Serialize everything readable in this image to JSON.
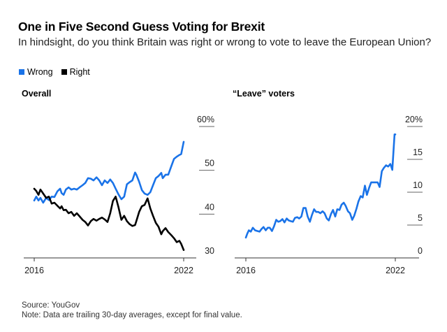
{
  "header": {
    "title": "One in Five Second Guess Voting for Brexit",
    "subtitle": "In hindsight, do you think Britain was right or wrong to vote to leave the European Union?"
  },
  "legend": [
    {
      "label": "Wrong",
      "color": "#1a73e8"
    },
    {
      "label": "Right",
      "color": "#000000"
    }
  ],
  "footer": {
    "source": "Source: YouGov",
    "note": "Note: Data are trailing 30-day averages, except for final value."
  },
  "chart_data": [
    {
      "type": "line",
      "title": "Overall",
      "xlabel": "",
      "ylabel": "",
      "x_range": [
        2016.0,
        2022.0
      ],
      "x_ticks": [
        "2016",
        "2022"
      ],
      "ylim": [
        30,
        60
      ],
      "y_ticks": [
        "60%",
        "50",
        "40",
        "30"
      ],
      "y_tick_values": [
        60,
        50,
        40,
        30
      ],
      "grid": false,
      "series": [
        {
          "name": "Wrong",
          "color": "#1a73e8",
          "x": [
            2016.0,
            2016.08,
            2016.17,
            2016.25,
            2016.36,
            2016.48,
            2016.59,
            2016.7,
            2016.81,
            2016.93,
            2017.04,
            2017.1,
            2017.18,
            2017.27,
            2017.38,
            2017.49,
            2017.6,
            2017.71,
            2017.82,
            2017.94,
            2018.05,
            2018.16,
            2018.27,
            2018.38,
            2018.5,
            2018.61,
            2018.72,
            2018.83,
            2018.94,
            2019.05,
            2019.16,
            2019.27,
            2019.38,
            2019.5,
            2019.61,
            2019.72,
            2019.83,
            2019.94,
            2020.05,
            2020.1,
            2020.21,
            2020.32,
            2020.43,
            2020.55,
            2020.66,
            2020.77,
            2020.88,
            2020.99,
            2021.1,
            2021.16,
            2021.27,
            2021.38,
            2021.5,
            2021.61,
            2021.72,
            2021.83,
            2021.9,
            2022.0
          ],
          "values": [
            43.1,
            44.0,
            43.1,
            43.7,
            42.6,
            43.7,
            43.2,
            44.0,
            43.9,
            45.2,
            45.8,
            44.8,
            44.4,
            45.6,
            46.1,
            45.6,
            45.8,
            45.6,
            46.1,
            46.6,
            47.1,
            48.2,
            48.1,
            47.7,
            48.4,
            47.7,
            46.6,
            47.7,
            47.1,
            47.9,
            47.1,
            45.8,
            44.5,
            43.4,
            44.0,
            46.8,
            47.3,
            47.7,
            49.5,
            49.0,
            47.4,
            45.5,
            44.7,
            44.4,
            45.0,
            46.6,
            48.2,
            48.7,
            49.4,
            48.2,
            49.0,
            49.0,
            50.9,
            52.6,
            53.1,
            53.5,
            53.7,
            56.5
          ]
        },
        {
          "name": "Right",
          "color": "#000000",
          "x": [
            2016.0,
            2016.08,
            2016.17,
            2016.25,
            2016.36,
            2016.48,
            2016.59,
            2016.7,
            2016.81,
            2016.93,
            2017.04,
            2017.1,
            2017.18,
            2017.27,
            2017.38,
            2017.49,
            2017.6,
            2017.71,
            2017.82,
            2017.94,
            2018.05,
            2018.16,
            2018.27,
            2018.38,
            2018.5,
            2018.61,
            2018.72,
            2018.83,
            2018.94,
            2019.05,
            2019.16,
            2019.27,
            2019.38,
            2019.5,
            2019.61,
            2019.72,
            2019.83,
            2019.94,
            2020.05,
            2020.1,
            2020.21,
            2020.32,
            2020.43,
            2020.55,
            2020.66,
            2020.77,
            2020.88,
            2020.99,
            2021.1,
            2021.16,
            2021.27,
            2021.38,
            2021.5,
            2021.61,
            2021.72,
            2021.83,
            2021.9,
            2022.0
          ],
          "values": [
            45.8,
            45.3,
            44.4,
            45.6,
            44.7,
            43.7,
            44.0,
            42.4,
            42.6,
            41.9,
            41.3,
            41.8,
            40.9,
            41.0,
            40.2,
            40.5,
            39.6,
            40.2,
            39.5,
            38.7,
            38.2,
            37.4,
            38.4,
            38.9,
            38.5,
            38.9,
            39.2,
            38.8,
            38.2,
            40.2,
            43.0,
            44.0,
            41.6,
            38.7,
            39.6,
            38.4,
            37.7,
            37.3,
            37.5,
            38.4,
            40.5,
            41.8,
            42.1,
            43.6,
            41.3,
            39.6,
            38.0,
            37.1,
            35.4,
            36.1,
            36.8,
            35.9,
            35.2,
            34.5,
            33.6,
            33.9,
            33.2,
            31.8
          ]
        }
      ]
    },
    {
      "type": "line",
      "title": "“Leave” voters",
      "xlabel": "",
      "ylabel": "",
      "x_range": [
        2016.0,
        2022.0
      ],
      "x_ticks": [
        "2016",
        "2022"
      ],
      "ylim": [
        0,
        20
      ],
      "y_ticks": [
        "20%",
        "15",
        "10",
        "5",
        "0"
      ],
      "y_tick_values": [
        20,
        15,
        10,
        5,
        0
      ],
      "grid": false,
      "series": [
        {
          "name": "Wrong",
          "color": "#1a73e8",
          "x": [
            2016.0,
            2016.06,
            2016.12,
            2016.2,
            2016.28,
            2016.37,
            2016.46,
            2016.55,
            2016.63,
            2016.71,
            2016.8,
            2016.88,
            2016.96,
            2017.05,
            2017.13,
            2017.22,
            2017.3,
            2017.38,
            2017.47,
            2017.55,
            2017.64,
            2017.72,
            2017.8,
            2017.89,
            2017.97,
            2018.06,
            2018.14,
            2018.23,
            2018.31,
            2018.4,
            2018.48,
            2018.57,
            2018.65,
            2018.74,
            2018.82,
            2018.91,
            2018.99,
            2019.08,
            2019.16,
            2019.25,
            2019.33,
            2019.42,
            2019.5,
            2019.59,
            2019.67,
            2019.76,
            2019.84,
            2019.93,
            2020.01,
            2020.1,
            2020.18,
            2020.27,
            2020.35,
            2020.44,
            2020.52,
            2020.61,
            2020.69,
            2020.78,
            2020.86,
            2020.95,
            2021.03,
            2021.12,
            2021.2,
            2021.29,
            2021.37,
            2021.46,
            2021.54,
            2021.63,
            2021.71,
            2021.8,
            2021.88,
            2021.97,
            2022.0
          ],
          "values": [
            3.1,
            3.7,
            4.2,
            4.0,
            4.6,
            4.2,
            4.1,
            4.0,
            4.4,
            4.7,
            4.2,
            4.6,
            4.6,
            4.1,
            4.8,
            5.8,
            5.5,
            5.6,
            5.9,
            5.4,
            6.0,
            5.7,
            5.6,
            5.5,
            6.1,
            6.2,
            6.0,
            6.3,
            7.6,
            7.6,
            6.3,
            5.5,
            6.5,
            7.4,
            7.0,
            7.0,
            6.8,
            7.1,
            6.8,
            6.0,
            5.7,
            6.7,
            7.3,
            6.3,
            7.4,
            7.3,
            8.1,
            8.4,
            7.9,
            7.1,
            6.8,
            5.8,
            6.4,
            7.5,
            8.6,
            9.4,
            9.2,
            11.0,
            9.6,
            10.7,
            11.5,
            11.5,
            11.5,
            11.5,
            10.8,
            13.2,
            13.7,
            14.1,
            13.9,
            14.3,
            13.4,
            18.8,
            18.8
          ]
        }
      ]
    }
  ]
}
